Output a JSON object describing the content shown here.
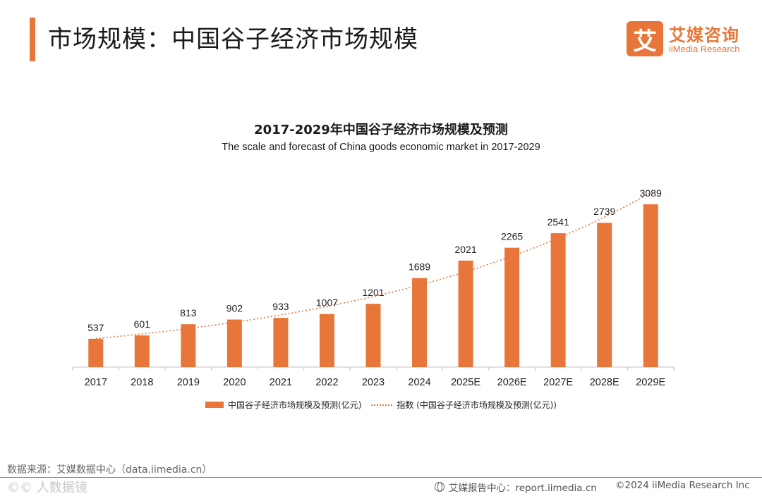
{
  "header": {
    "title": "市场规模：中国谷子经济市场规模",
    "logo_mark": "艾",
    "logo_cn": "艾媒咨询",
    "logo_en": "iiMedia Research"
  },
  "chart_data": {
    "type": "bar",
    "title": "2017-2029年中国谷子经济市场规模及预测",
    "subtitle": "The scale and forecast of China goods economic market in 2017-2029",
    "categories": [
      "2017",
      "2018",
      "2019",
      "2020",
      "2021",
      "2022",
      "2023",
      "2024",
      "2025E",
      "2026E",
      "2027E",
      "2028E",
      "2029E"
    ],
    "series": [
      {
        "name": "中国谷子经济市场规模及预测(亿元)",
        "type": "bar",
        "values": [
          537,
          601,
          813,
          902,
          933,
          1007,
          1201,
          1689,
          2021,
          2265,
          2541,
          2739,
          3089
        ]
      },
      {
        "name": "指数 (中国谷子经济市场规模及预测(亿元))",
        "type": "trendline",
        "style": "dotted"
      }
    ],
    "data_labels": [
      "537",
      "601",
      "813",
      "902",
      "933",
      "1007",
      "1201",
      "1689",
      "2021",
      "2265",
      "2541",
      "2739",
      "3089"
    ],
    "ylim": [
      0,
      3500
    ],
    "xlabel": "",
    "ylabel": "",
    "grid": false,
    "legend_position": "bottom",
    "colors": {
      "bar": "#e8763a",
      "trend": "#e8763a"
    }
  },
  "footer": {
    "source": "数据来源：艾媒数据中心（data.iimedia.cn）",
    "watermark": "©© 人数据镜",
    "report": "艾媒报告中心：report.iimedia.cn",
    "copyright": "©2024  iiMedia Research Inc"
  }
}
